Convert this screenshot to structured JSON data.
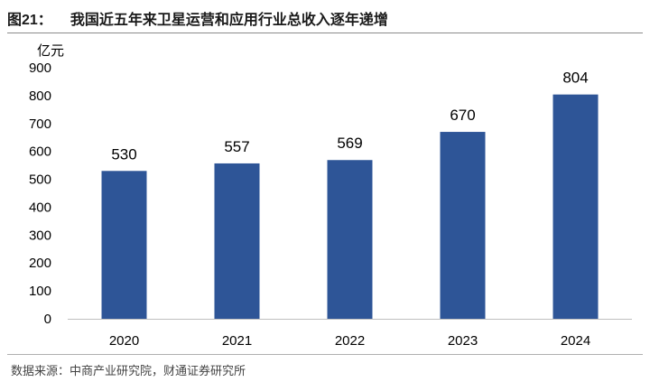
{
  "header": {
    "figure_label": "图21：",
    "title": "我国近五年来卫星运营和应用行业总收入逐年递增"
  },
  "chart_data": {
    "type": "bar",
    "title": "我国近五年来卫星运营和应用行业总收入逐年递增",
    "ylabel": "亿元",
    "xlabel": "",
    "categories": [
      "2020",
      "2021",
      "2022",
      "2023",
      "2024"
    ],
    "values": [
      530,
      557,
      569,
      670,
      804
    ],
    "data_labels": [
      "530",
      "557",
      "569",
      "670",
      "804"
    ],
    "ylim": [
      0,
      900
    ],
    "yticks": [
      "0",
      "100",
      "200",
      "300",
      "400",
      "500",
      "600",
      "700",
      "800",
      "900"
    ],
    "grid": false,
    "legend": "none",
    "bar_color": "#2E5597"
  },
  "footer": {
    "source": "数据来源：中商产业研究院，财通证券研究所"
  }
}
